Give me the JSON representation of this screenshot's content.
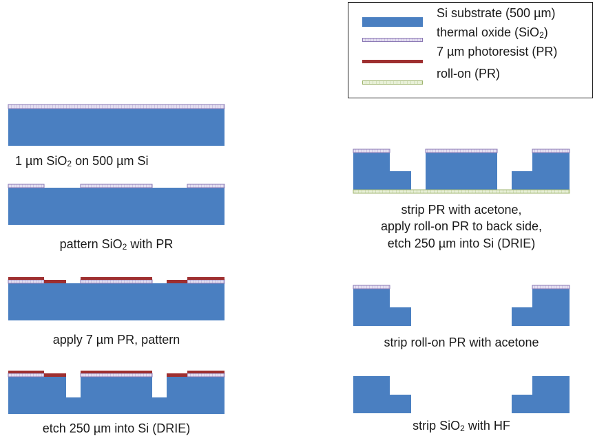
{
  "legend": {
    "items": [
      {
        "label_main": "Si substrate (500 µm)",
        "label_sub": "",
        "label_tail": ""
      },
      {
        "label_main": "thermal oxide (SiO",
        "label_sub": "2",
        "label_tail": ")"
      },
      {
        "label_main": "7 µm photoresist (PR)",
        "label_sub": "",
        "label_tail": ""
      },
      {
        "label_main": "roll-on (PR)",
        "label_sub": "",
        "label_tail": ""
      }
    ]
  },
  "steps": [
    {
      "id": "step-1",
      "caption_a": "1 µm SiO",
      "caption_sub": "2",
      "caption_b": " on 500 µm  Si"
    },
    {
      "id": "step-2",
      "caption_a": "pattern SiO",
      "caption_sub": "2",
      "caption_b": "  with PR"
    },
    {
      "id": "step-3",
      "caption_a": "apply 7 µm PR, pattern",
      "caption_sub": "",
      "caption_b": ""
    },
    {
      "id": "step-4",
      "caption_a": "etch 250 µm into Si (DRIE)",
      "caption_sub": "",
      "caption_b": ""
    },
    {
      "id": "step-5",
      "caption_lines": [
        "strip PR with acetone,",
        "apply roll-on PR to back side,",
        "etch 250 µm into Si (DRIE)"
      ]
    },
    {
      "id": "step-6",
      "caption_a": "strip roll-on PR with acetone",
      "caption_sub": "",
      "caption_b": ""
    },
    {
      "id": "step-7",
      "caption_a": "strip SiO",
      "caption_sub": "2",
      "caption_b": "  with HF"
    }
  ],
  "colors": {
    "silicon": "#4a7fc1",
    "silicon_edge": "#3f6fad",
    "oxide_fill": "#e4def0",
    "oxide_edge": "#8a78b4",
    "photoresist": "#9e2f30",
    "rollon_fill": "#e8f0d8",
    "rollon_edge": "#9fb56f"
  }
}
